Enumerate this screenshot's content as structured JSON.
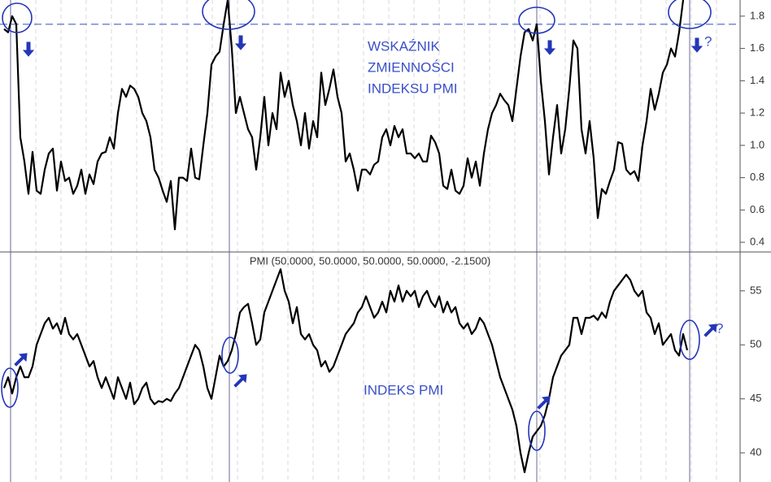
{
  "chart_data": [
    {
      "type": "line",
      "color": "#000000",
      "ylim": [
        0.34,
        1.9
      ],
      "yticks": [
        0.4,
        0.6,
        0.8,
        {
          "value": 1,
          "label": "1.0"
        },
        1.2,
        1.4,
        1.6,
        1.8
      ],
      "reference_line": 1.75,
      "reference_color": "#6a7fd0",
      "annotations": [
        "WSKAŹNIK",
        "ZMIENNOŚCI",
        "INDEKSU PMI",
        "?"
      ],
      "values": [
        1.72,
        1.7,
        1.8,
        1.75,
        1.05,
        0.9,
        0.7,
        0.96,
        0.72,
        0.7,
        0.85,
        0.95,
        0.98,
        0.72,
        0.9,
        0.78,
        0.8,
        0.7,
        0.75,
        0.85,
        0.7,
        0.82,
        0.76,
        0.9,
        0.95,
        0.96,
        1.05,
        0.98,
        1.2,
        1.35,
        1.3,
        1.37,
        1.35,
        1.3,
        1.2,
        1.15,
        1.05,
        0.85,
        0.8,
        0.72,
        0.65,
        0.78,
        0.48,
        0.8,
        0.8,
        0.78,
        0.98,
        0.8,
        0.79,
        1.0,
        1.2,
        1.5,
        1.55,
        1.58,
        1.75,
        1.9,
        1.6,
        1.2,
        1.3,
        1.2,
        1.1,
        1.05,
        0.85,
        1.05,
        1.3,
        1.0,
        1.2,
        1.1,
        1.45,
        1.3,
        1.4,
        1.25,
        1.15,
        1.0,
        1.2,
        0.98,
        1.15,
        1.05,
        1.45,
        1.25,
        1.35,
        1.47,
        1.3,
        1.2,
        0.9,
        0.95,
        0.85,
        0.72,
        0.85,
        0.85,
        0.82,
        0.88,
        0.9,
        1.05,
        1.1,
        1.0,
        1.12,
        1.05,
        1.1,
        0.95,
        0.95,
        0.92,
        0.95,
        0.9,
        0.9,
        1.06,
        1.02,
        0.95,
        0.75,
        0.73,
        0.85,
        0.72,
        0.7,
        0.75,
        0.92,
        0.8,
        0.9,
        0.75,
        0.95,
        1.1,
        1.2,
        1.25,
        1.32,
        1.28,
        1.25,
        1.15,
        1.35,
        1.55,
        1.7,
        1.72,
        1.65,
        1.75,
        1.4,
        1.15,
        0.82,
        1.05,
        1.25,
        0.95,
        1.1,
        1.35,
        1.65,
        1.6,
        1.1,
        0.95,
        1.15,
        0.92,
        0.55,
        0.73,
        0.7,
        0.78,
        0.85,
        1.02,
        1.01,
        0.85,
        0.82,
        0.84,
        0.78,
        1.0,
        1.15,
        1.35,
        1.22,
        1.32,
        1.45,
        1.5,
        1.6,
        1.55,
        1.7,
        1.9
      ]
    },
    {
      "type": "line",
      "color": "#000000",
      "ylim": [
        37.3,
        58.6
      ],
      "yticks": [
        40,
        45,
        50,
        55
      ],
      "title": "PMI (50.0000, 50.0000, 50.0000, 50.0000, -2.1500)",
      "annotations": [
        "INDEKS PMI",
        "?"
      ],
      "values": [
        46,
        47,
        45.5,
        47,
        48,
        47,
        47,
        48,
        50,
        51,
        52,
        52.5,
        51.5,
        52,
        51,
        52.5,
        51,
        50.5,
        51,
        50,
        49,
        48,
        48.5,
        47,
        46,
        47,
        46,
        45,
        47,
        46,
        45,
        46.5,
        44.5,
        45,
        46,
        46.5,
        45,
        44.5,
        44.8,
        44.7,
        45,
        44.8,
        45.5,
        46,
        47,
        48,
        49,
        50,
        49.5,
        48,
        46,
        45,
        47,
        49,
        48,
        48.5,
        49.5,
        51,
        53,
        53.5,
        53.8,
        52,
        50,
        50.5,
        53,
        54,
        55,
        56,
        57,
        55,
        54,
        52,
        53.5,
        51,
        50.5,
        51,
        50,
        49.5,
        48,
        48.5,
        47.5,
        48,
        49,
        50,
        51,
        51.5,
        52,
        53,
        53.5,
        54.5,
        53.5,
        52.5,
        53,
        54,
        53,
        55,
        54,
        55.5,
        54,
        55,
        54.5,
        55,
        53.5,
        54.5,
        55,
        54,
        53.5,
        54.5,
        53,
        54,
        53,
        53.5,
        52,
        51.5,
        52,
        51,
        51.5,
        52.5,
        52,
        51,
        50,
        48.5,
        47,
        46,
        45,
        44,
        42.5,
        40,
        38.2,
        40,
        41.5,
        42,
        42.5,
        43.5,
        45,
        47,
        48,
        49,
        49.5,
        50,
        52.5,
        52.5,
        51,
        52.5,
        52.5,
        52.7,
        52.3,
        53,
        52.5,
        54,
        55,
        55.5,
        56,
        56.5,
        56,
        55,
        54.5,
        55,
        53,
        52.5,
        51,
        52,
        50,
        50.5,
        51,
        49.5,
        49,
        51,
        49.5
      ]
    }
  ]
}
